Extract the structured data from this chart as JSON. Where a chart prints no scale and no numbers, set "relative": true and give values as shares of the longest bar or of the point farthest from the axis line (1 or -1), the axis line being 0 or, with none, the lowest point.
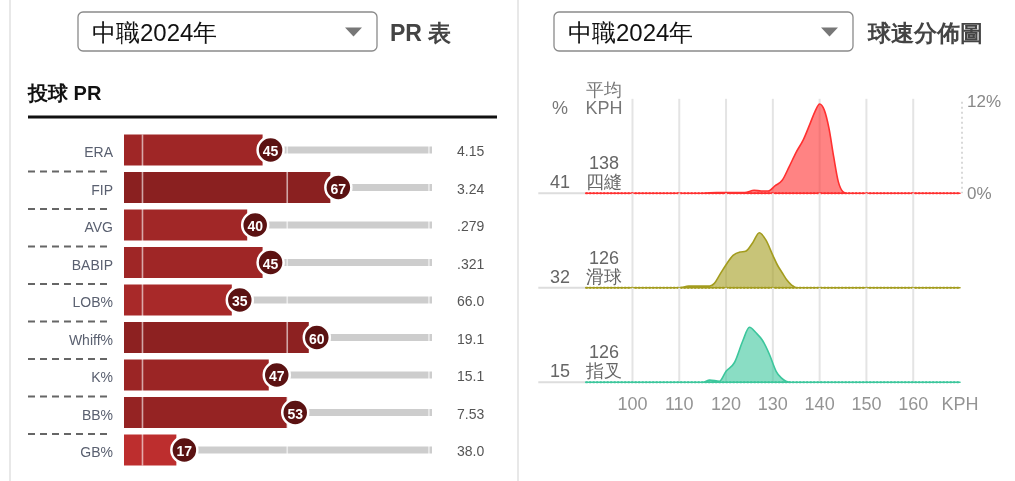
{
  "chart_data": [
    {
      "type": "bar",
      "orientation": "horizontal",
      "stacked": true,
      "title": "PR 表",
      "subtitle": "投球 PR",
      "categories": [
        "ERA",
        "FIP",
        "AVG",
        "BABIP",
        "LOB%",
        "Whiff%",
        "K%",
        "BB%",
        "GB%"
      ],
      "series": [
        {
          "values": [
            45,
            67,
            40,
            45,
            35,
            60,
            47,
            53,
            17
          ],
          "colors": [
            "#9f2626",
            "#8a2020",
            "#a12727",
            "#9f2626",
            "#a82929",
            "#8d2121",
            "#9b2525",
            "#952323",
            "#bd2e2e"
          ],
          "value_labels": [
            "45",
            "67",
            "40",
            "45",
            "35",
            "60",
            "47",
            "53",
            "17"
          ]
        },
        {
          "color": "#cdcdcd",
          "values": [
            55,
            33,
            60,
            55,
            65,
            40,
            53,
            47,
            83
          ]
        }
      ],
      "xlim": [
        0,
        100
      ],
      "tick_labels": "y",
      "ref_lines": [
        {
          "axis": "x",
          "value": 6,
          "color": "#ffffff"
        },
        {
          "axis": "x",
          "value": 53,
          "color": "#ffffff"
        },
        {
          "axis": "x",
          "value": 99,
          "color": "#ffffff"
        }
      ],
      "annotations": [
        "中職2024年",
        "4.15",
        "3.24",
        ".279",
        ".321",
        "66.0",
        "19.1",
        "15.1",
        "7.53",
        "38.0"
      ]
    },
    {
      "type": "area",
      "title": "球速分佈圖",
      "x": [
        90,
        115,
        118,
        120,
        122,
        124,
        126,
        127.5,
        129,
        130.5,
        132,
        133.5,
        135,
        136.5,
        138,
        139,
        140,
        141,
        142,
        143,
        144,
        145,
        146,
        170
      ],
      "series": [
        {
          "name": "四縫",
          "color": "#ff3030",
          "values": [
            0,
            0,
            0.1,
            0.1,
            0.1,
            0.1,
            0.4,
            0.3,
            0.3,
            1.0,
            1.7,
            3.5,
            5.4,
            7.0,
            9.2,
            10.7,
            11.7,
            10.9,
            8.5,
            4.8,
            1.5,
            0.2,
            0,
            0
          ]
        }
      ],
      "xlim": [
        90,
        170
      ],
      "xticks": [
        100,
        110,
        120,
        130,
        140,
        150,
        160
      ],
      "ylim": [
        0,
        12
      ],
      "yticks": [
        {
          "value": 0,
          "label": "0%"
        },
        {
          "value": 12,
          "label": "12%"
        }
      ],
      "grid": "x",
      "tick_labels": "y",
      "annotations": [
        "41",
        "138",
        "中職2024年",
        "%",
        "平均\nKPH"
      ]
    },
    {
      "type": "area",
      "relative": true,
      "x": [
        90,
        110,
        112,
        114,
        116.5,
        117.5,
        118.6,
        120,
        121.5,
        123,
        124.3,
        125.7,
        127.1,
        128.5,
        130,
        131,
        132.1,
        133,
        134,
        135,
        170
      ],
      "series": [
        {
          "name": "滑球",
          "color": "#a39c1e",
          "values": [
            0,
            0,
            0.03,
            0.03,
            0.03,
            0.08,
            0.23,
            0.42,
            0.59,
            0.65,
            0.67,
            0.82,
            1,
            0.87,
            0.59,
            0.41,
            0.26,
            0.14,
            0.05,
            0,
            0
          ]
        }
      ],
      "xlim": [
        90,
        170
      ],
      "xticks": [
        100,
        110,
        120,
        130,
        140,
        150,
        160
      ],
      "grid": "x",
      "tick_labels": false,
      "annotations": [
        "32",
        "126"
      ]
    },
    {
      "type": "area",
      "relative": true,
      "xlabel": "KPH",
      "x": [
        90,
        115,
        116.5,
        118.6,
        120,
        121.8,
        123.6,
        125,
        126.4,
        127.8,
        129.3,
        130.7,
        131.8,
        132.8,
        134,
        170
      ],
      "series": [
        {
          "name": "指叉",
          "color": "#3cc69c",
          "values": [
            0,
            0,
            0.04,
            0.02,
            0.2,
            0.36,
            0.76,
            1,
            0.9,
            0.76,
            0.5,
            0.2,
            0.08,
            0.02,
            0,
            0
          ]
        }
      ],
      "xlim": [
        90,
        170
      ],
      "xticks": [
        100,
        110,
        120,
        130,
        140,
        150,
        160
      ],
      "grid": "x",
      "tick_labels": "x",
      "annotations": [
        "15",
        "126"
      ]
    }
  ]
}
